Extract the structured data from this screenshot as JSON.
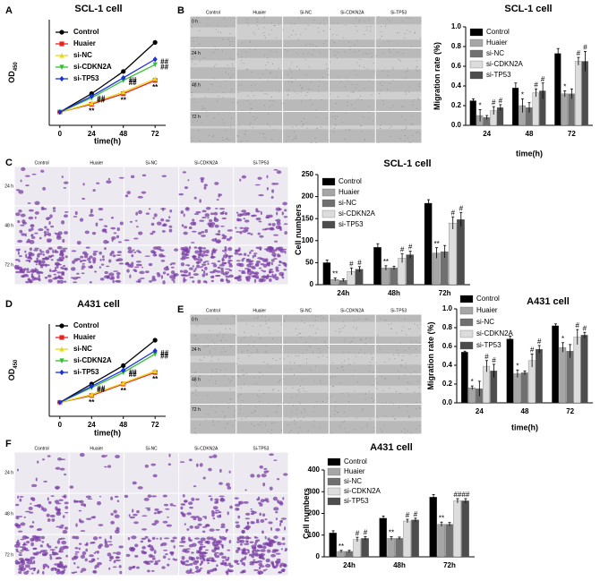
{
  "panel_labels": [
    "A",
    "B",
    "C",
    "D",
    "E",
    "F"
  ],
  "image_grids": [
    {
      "columns": [
        "Control",
        "Huaier",
        "Si-NC",
        "Si-CDKN2A",
        "Si-TP53"
      ],
      "rows": [
        "0 h",
        "24 h",
        "48 h",
        "72 h"
      ]
    },
    {
      "columns": [
        "Control",
        "Huaier",
        "Si-NC",
        "Si-CDKN2A",
        "Si-TP53"
      ],
      "rows": [
        "24 h",
        "48 h",
        "72 h"
      ]
    },
    {
      "columns": [
        "Control",
        "Huaier",
        "Si-NC",
        "Si-CDKN2A",
        "Si-TP53"
      ],
      "rows": [
        "0 h",
        "24 h",
        "48 h",
        "72 h"
      ]
    },
    {
      "columns": [
        "Control",
        "Huaier",
        "Si-NC",
        "Si-CDKN2A",
        "Si-TP53"
      ],
      "rows": [
        "24 h",
        "48 h",
        "72 h"
      ]
    }
  ],
  "chart_data": [
    {
      "type": "line",
      "title": "SCL-1 cell",
      "x_label": "time(h)",
      "y_label": "OD",
      "y_label_sub": "450",
      "x": [
        0,
        24,
        48,
        72
      ],
      "xlim": [
        -8,
        80
      ],
      "xticks": [
        0,
        24,
        48,
        72
      ],
      "ylim": [
        0,
        2
      ],
      "legend": "upper left",
      "series": [
        {
          "name": "Control",
          "color": "#000000",
          "marker": "o",
          "values": [
            0.25,
            0.6,
            1.02,
            1.57
          ]
        },
        {
          "name": "Huaier",
          "color": "#e8261c",
          "marker": "s",
          "values": [
            0.25,
            0.4,
            0.6,
            0.85
          ],
          "annotations": [
            null,
            "**",
            "**",
            "**"
          ]
        },
        {
          "name": "si-NC",
          "color": "#e8d81c",
          "marker": "^",
          "values": [
            0.25,
            0.42,
            0.63,
            0.88
          ]
        },
        {
          "name": "si-CDKN2A",
          "color": "#2fc42f",
          "marker": "v",
          "values": [
            0.25,
            0.52,
            0.85,
            1.15
          ],
          "annotations": [
            null,
            "##",
            "##",
            "##"
          ]
        },
        {
          "name": "si-TP53",
          "color": "#1c2fe0",
          "marker": "D",
          "values": [
            0.25,
            0.55,
            0.9,
            1.25
          ],
          "annotations": [
            null,
            "##",
            "##",
            "##"
          ]
        }
      ]
    },
    {
      "type": "bar",
      "title": "SCL-1 cell",
      "x_label": "time(h)",
      "y_label": "Migration rate (%)",
      "categories": [
        "24",
        "48",
        "72"
      ],
      "ylim": [
        0,
        1.0
      ],
      "yticks": [
        {
          "value": 0,
          "label": "0.0"
        },
        0.2,
        0.4,
        0.6,
        0.8,
        {
          "value": 1.0,
          "label": "1.0"
        }
      ],
      "legend": "upper left",
      "series": [
        {
          "name": "Control",
          "color": "#000000",
          "values": [
            0.25,
            0.38,
            0.73
          ],
          "errors": [
            0.02,
            0.05,
            0.05
          ]
        },
        {
          "name": "Huaier",
          "color": "#a6a6a6",
          "values": [
            0.1,
            0.2,
            0.32
          ],
          "errors": [
            0.06,
            0.07,
            0.03
          ],
          "annotations": [
            "*",
            "*",
            "*"
          ]
        },
        {
          "name": "si-NC",
          "color": "#707070",
          "values": [
            0.08,
            0.18,
            0.32
          ],
          "errors": [
            0.02,
            0.05,
            0.05
          ]
        },
        {
          "name": "si-CDKN2A",
          "color": "#dcdcdc",
          "values": [
            0.15,
            0.33,
            0.65
          ],
          "errors": [
            0.04,
            0.04,
            0.04
          ],
          "annotations": [
            "#",
            "#",
            "#"
          ]
        },
        {
          "name": "si-TP53",
          "color": "#4d4d4d",
          "values": [
            0.18,
            0.35,
            0.65
          ],
          "errors": [
            0.03,
            0.08,
            0.1
          ],
          "annotations": [
            "#",
            "#",
            "#"
          ]
        }
      ]
    },
    {
      "type": "bar",
      "title": "SCL-1 cell",
      "y_label": "Cell numbers",
      "categories": [
        "24h",
        "48h",
        "72h"
      ],
      "ylim": [
        0,
        250
      ],
      "yticks": [
        0,
        50,
        100,
        150,
        200,
        250
      ],
      "legend": "upper left",
      "series": [
        {
          "name": "Control",
          "color": "#000000",
          "values": [
            50,
            85,
            185
          ],
          "errors": [
            6,
            8,
            8
          ]
        },
        {
          "name": "Huaier",
          "color": "#a6a6a6",
          "values": [
            12,
            38,
            72
          ],
          "errors": [
            3,
            5,
            12
          ],
          "annotations": [
            "**",
            "**",
            "**"
          ]
        },
        {
          "name": "si-NC",
          "color": "#707070",
          "values": [
            10,
            38,
            75
          ],
          "errors": [
            3,
            4,
            14
          ]
        },
        {
          "name": "si-CDKN2A",
          "color": "#dcdcdc",
          "values": [
            30,
            60,
            140
          ],
          "errors": [
            8,
            10,
            14
          ],
          "annotations": [
            "#",
            "#",
            "#"
          ]
        },
        {
          "name": "si-TP53",
          "color": "#4d4d4d",
          "values": [
            35,
            68,
            148
          ],
          "errors": [
            6,
            8,
            16
          ],
          "annotations": [
            "#",
            "#",
            "#"
          ]
        }
      ]
    },
    {
      "type": "line",
      "title": "A431 cell",
      "x_label": "time(h)",
      "y_label": "OD",
      "y_label_sub": "450",
      "x": [
        0,
        24,
        48,
        72
      ],
      "xlim": [
        -8,
        80
      ],
      "xticks": [
        0,
        24,
        48,
        72
      ],
      "ylim": [
        0,
        2
      ],
      "legend": "upper left",
      "series": [
        {
          "name": "Control",
          "color": "#000000",
          "marker": "o",
          "values": [
            0.3,
            0.7,
            1.1,
            1.65
          ]
        },
        {
          "name": "Huaier",
          "color": "#e8261c",
          "marker": "s",
          "values": [
            0.3,
            0.45,
            0.7,
            0.95
          ],
          "annotations": [
            null,
            "**",
            "**",
            "**"
          ]
        },
        {
          "name": "si-NC",
          "color": "#e8d81c",
          "marker": "^",
          "values": [
            0.3,
            0.47,
            0.72,
            0.98
          ]
        },
        {
          "name": "si-CDKN2A",
          "color": "#2fc42f",
          "marker": "v",
          "values": [
            0.3,
            0.62,
            0.95,
            1.35
          ],
          "annotations": [
            null,
            "##",
            "##",
            "##"
          ]
        },
        {
          "name": "si-TP53",
          "color": "#1c2fe0",
          "marker": "D",
          "values": [
            0.3,
            0.65,
            1.0,
            1.42
          ],
          "annotations": [
            null,
            "##",
            "##",
            "##"
          ]
        }
      ]
    },
    {
      "type": "bar",
      "title": "A431 cell",
      "x_label": "time(h)",
      "y_label": "Migration rate (%)",
      "categories": [
        "24",
        "48",
        "72"
      ],
      "ylim": [
        0,
        1.0
      ],
      "yticks": [
        {
          "value": 0,
          "label": "0.0"
        },
        0.2,
        0.4,
        0.6,
        0.8,
        {
          "value": 1.0,
          "label": "1.0"
        }
      ],
      "legend": "upper left",
      "series": [
        {
          "name": "Control",
          "color": "#000000",
          "values": [
            0.54,
            0.68,
            0.82
          ],
          "errors": [
            0.01,
            0.03,
            0.02
          ]
        },
        {
          "name": "Huaier",
          "color": "#a6a6a6",
          "values": [
            0.16,
            0.31,
            0.59
          ],
          "errors": [
            0.02,
            0.04,
            0.05
          ],
          "annotations": [
            "*",
            "*",
            "*"
          ]
        },
        {
          "name": "si-NC",
          "color": "#707070",
          "values": [
            0.15,
            0.32,
            0.55
          ],
          "errors": [
            0.08,
            0.02,
            0.07
          ]
        },
        {
          "name": "si-CDKN2A",
          "color": "#dcdcdc",
          "values": [
            0.39,
            0.45,
            0.7
          ],
          "errors": [
            0.06,
            0.07,
            0.08
          ],
          "annotations": [
            "#",
            "#",
            "#"
          ]
        },
        {
          "name": "si-TP53",
          "color": "#4d4d4d",
          "values": [
            0.34,
            0.57,
            0.72
          ],
          "errors": [
            0.07,
            0.04,
            0.03
          ],
          "annotations": [
            "#",
            "#",
            "#"
          ]
        }
      ]
    },
    {
      "type": "bar",
      "title": "A431 cell",
      "y_label": "Cell numbers",
      "categories": [
        "24h",
        "48h",
        "72h"
      ],
      "ylim": [
        0,
        400
      ],
      "yticks": [
        0,
        100,
        200,
        300,
        400
      ],
      "legend": "upper left",
      "series": [
        {
          "name": "Control",
          "color": "#000000",
          "values": [
            110,
            178,
            275
          ],
          "errors": [
            10,
            10,
            12
          ]
        },
        {
          "name": "Huaier",
          "color": "#a6a6a6",
          "values": [
            25,
            85,
            150
          ],
          "errors": [
            5,
            8,
            10
          ],
          "annotations": [
            "**",
            "**",
            "**"
          ]
        },
        {
          "name": "si-NC",
          "color": "#707070",
          "values": [
            25,
            85,
            150
          ],
          "errors": [
            5,
            6,
            8
          ]
        },
        {
          "name": "si-CDKN2A",
          "color": "#dcdcdc",
          "values": [
            80,
            165,
            258
          ],
          "errors": [
            10,
            8,
            10
          ],
          "annotations": [
            "#",
            "#",
            "##"
          ]
        },
        {
          "name": "si-TP53",
          "color": "#4d4d4d",
          "values": [
            85,
            170,
            258
          ],
          "errors": [
            8,
            8,
            10
          ],
          "annotations": [
            "#",
            "#",
            "##"
          ]
        }
      ]
    }
  ]
}
